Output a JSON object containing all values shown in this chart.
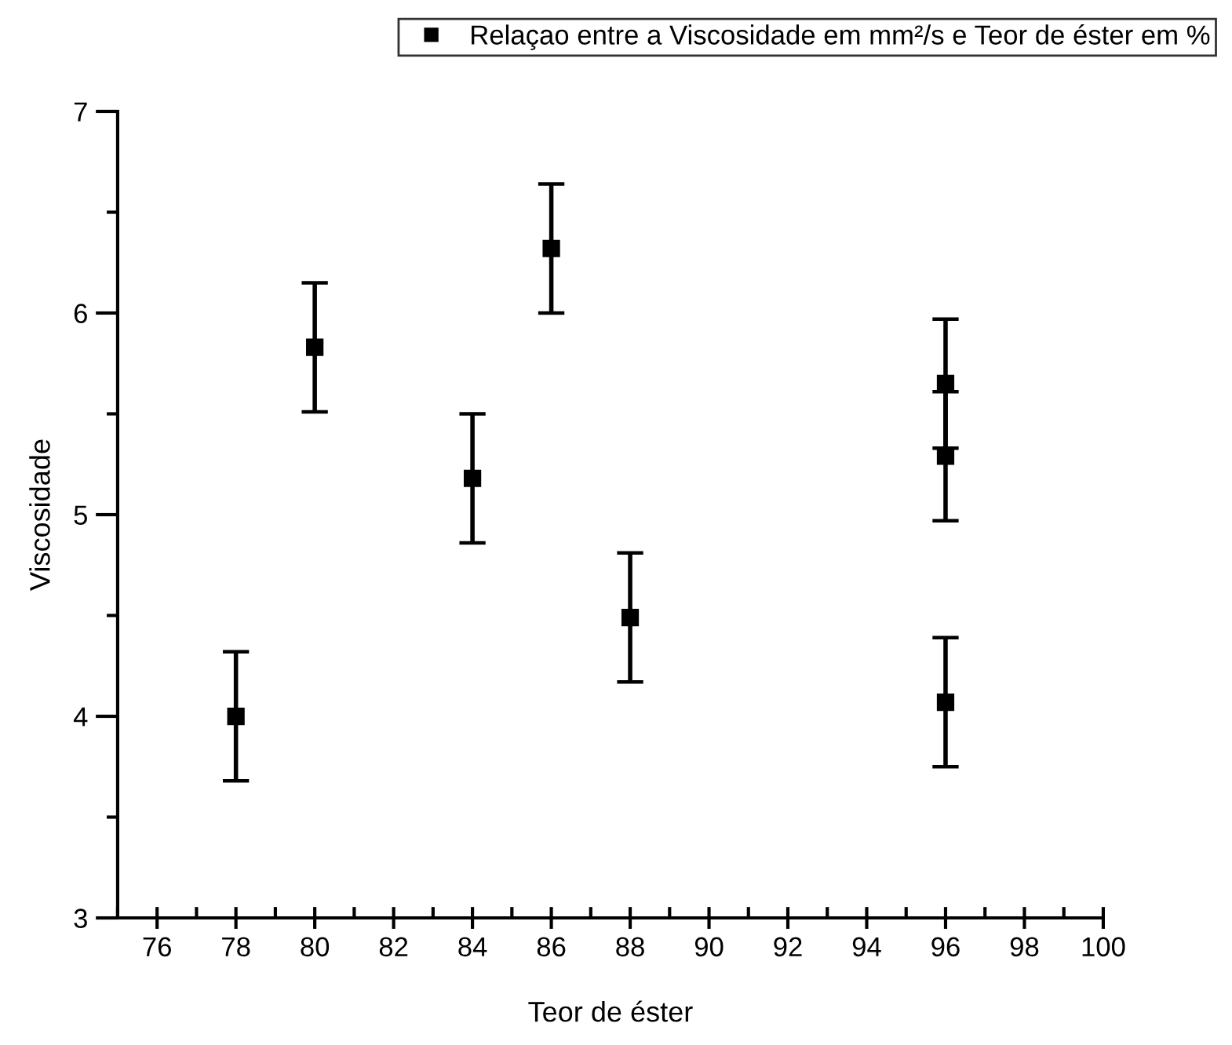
{
  "chart_data": {
    "type": "scatter",
    "xlabel": "Teor de éster",
    "ylabel": "Viscosidade",
    "x": [
      78,
      80,
      84,
      86,
      88,
      96,
      96,
      96
    ],
    "series": [
      {
        "name": "Relaçao entre a Viscosidade em mm²/s e Teor de éster em %",
        "color": "#000000",
        "values": [
          4.0,
          5.83,
          5.18,
          6.32,
          4.49,
          5.65,
          5.29,
          4.07
        ],
        "errors": [
          0.32,
          0.32,
          0.32,
          0.32,
          0.32,
          0.32,
          0.32,
          0.32
        ]
      }
    ],
    "xlim": [
      75,
      100
    ],
    "xticks": [
      76,
      78,
      80,
      82,
      84,
      86,
      88,
      90,
      92,
      94,
      96,
      98,
      100
    ],
    "ylim": [
      3,
      7
    ],
    "yticks": [
      3,
      4,
      5,
      6,
      7
    ],
    "marker": "square",
    "grid": false,
    "legend": "top right"
  }
}
